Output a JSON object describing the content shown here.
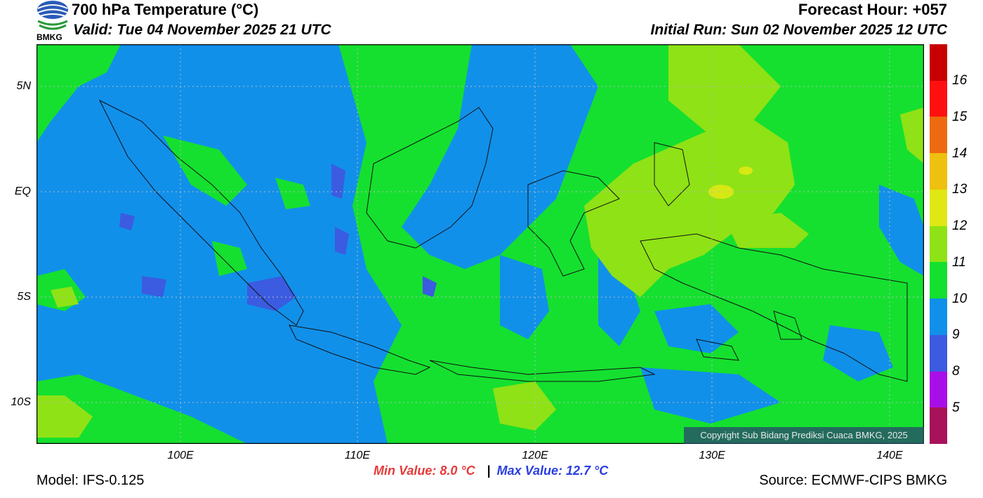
{
  "header": {
    "title": "700 hPa Temperature (°C)",
    "valid": "Valid: Tue 04 November 2025 21 UTC",
    "forecast_hour": "Forecast Hour: +057",
    "initial_run": "Initial Run: Sun 02 November 2025 12 UTC",
    "logo_text": "BMKG"
  },
  "map": {
    "lat_labels": [
      "5N",
      "EQ",
      "5S",
      "10S"
    ],
    "lon_labels": [
      "100E",
      "110E",
      "120E",
      "130E",
      "140E"
    ],
    "copyright": "Copyright Sub Bidang Prediksi Cuaca BMKG, 2025",
    "background_color": "#1190ea",
    "colors": {
      "c8": "#3b5be0",
      "c9": "#1190ea",
      "c10": "#15e02f",
      "c11": "#8fe215",
      "c12": "#d7e814"
    }
  },
  "colorbar": {
    "labels": [
      "16",
      "15",
      "14",
      "13",
      "12",
      "11",
      "10",
      "9",
      "8",
      "5"
    ],
    "colors": [
      "#c80000",
      "#ff1010",
      "#ee6a10",
      "#eec010",
      "#dfe814",
      "#8fe215",
      "#15e02f",
      "#1190ea",
      "#3b5be0",
      "#a80fe8",
      "#a8125a"
    ]
  },
  "footer": {
    "model": "Model: IFS-0.125",
    "source": "Source: ECMWF-CIPS BMKG",
    "min_value": "Min Value: 8.0 °C",
    "separator": "|",
    "max_value": "Max Value: 12.7 °C"
  }
}
